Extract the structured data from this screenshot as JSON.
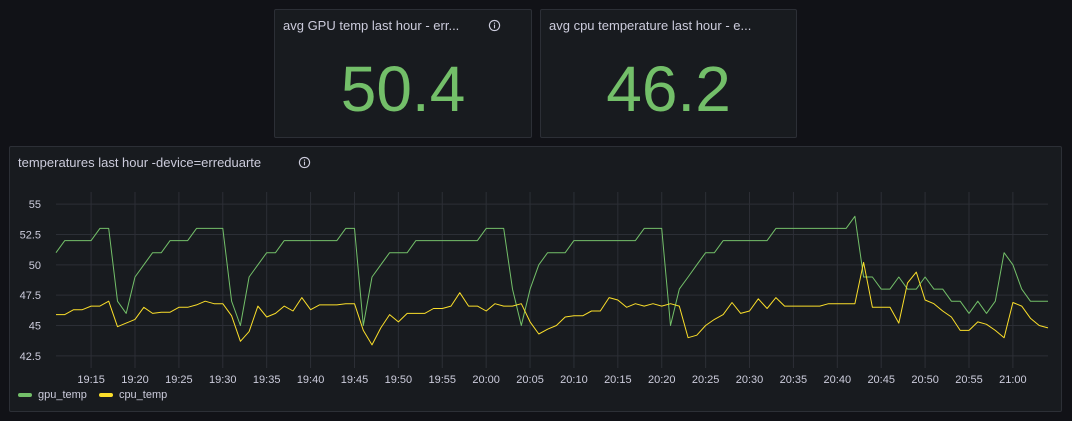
{
  "stats": [
    {
      "title": "avg GPU temp last hour - err...",
      "value": "50.4"
    },
    {
      "title": "avg cpu temperature last hour - e...",
      "value": "46.2"
    }
  ],
  "timeseries": {
    "title": "temperatures last hour -device=erreduarte"
  },
  "colors": {
    "gpu": "#73bf69",
    "cpu": "#fade2a",
    "stat_value": "#73bf69",
    "grid": "#2c2f36",
    "axis_text": "#ccccdc"
  },
  "chart_data": {
    "type": "line",
    "title": "temperatures last hour -device=erreduarte",
    "x_unit": "time",
    "x_range": [
      "19:11",
      "21:04"
    ],
    "x_ticks": [
      "19:15",
      "19:20",
      "19:25",
      "19:30",
      "19:35",
      "19:40",
      "19:45",
      "19:50",
      "19:55",
      "20:00",
      "20:05",
      "20:10",
      "20:15",
      "20:20",
      "20:25",
      "20:30",
      "20:35",
      "20:40",
      "20:45",
      "20:50",
      "20:55",
      "21:00"
    ],
    "y_ticks": [
      "42.5",
      "45",
      "47.5",
      "50",
      "52.5",
      "55"
    ],
    "ylim": [
      41.5,
      56
    ],
    "legend_placement": "bottom-left",
    "grid": true,
    "series": [
      {
        "name": "gpu_temp",
        "x": [
          "19:11",
          "19:12",
          "19:13",
          "19:14",
          "19:15",
          "19:16",
          "19:17",
          "19:18",
          "19:19",
          "19:20",
          "19:21",
          "19:22",
          "19:23",
          "19:24",
          "19:25",
          "19:26",
          "19:27",
          "19:28",
          "19:29",
          "19:30",
          "19:31",
          "19:32",
          "19:33",
          "19:34",
          "19:35",
          "19:36",
          "19:37",
          "19:38",
          "19:39",
          "19:40",
          "19:41",
          "19:42",
          "19:43",
          "19:44",
          "19:45",
          "19:46",
          "19:47",
          "19:48",
          "19:49",
          "19:50",
          "19:51",
          "19:52",
          "19:53",
          "19:54",
          "19:55",
          "19:56",
          "19:57",
          "19:58",
          "19:59",
          "20:00",
          "20:01",
          "20:02",
          "20:03",
          "20:04",
          "20:05",
          "20:06",
          "20:07",
          "20:08",
          "20:09",
          "20:10",
          "20:11",
          "20:12",
          "20:13",
          "20:14",
          "20:15",
          "20:16",
          "20:17",
          "20:18",
          "20:19",
          "20:20",
          "20:21",
          "20:22",
          "20:23",
          "20:24",
          "20:25",
          "20:26",
          "20:27",
          "20:28",
          "20:29",
          "20:30",
          "20:31",
          "20:32",
          "20:33",
          "20:34",
          "20:35",
          "20:36",
          "20:37",
          "20:38",
          "20:39",
          "20:40",
          "20:41",
          "20:42",
          "20:43",
          "20:44",
          "20:45",
          "20:46",
          "20:47",
          "20:48",
          "20:49",
          "20:50",
          "20:51",
          "20:52",
          "20:53",
          "20:54",
          "20:55",
          "20:56",
          "20:57",
          "20:58",
          "20:59",
          "21:00",
          "21:01",
          "21:02",
          "21:03",
          "21:04"
        ],
        "values": [
          51,
          52,
          52,
          52,
          52,
          53,
          53,
          47,
          46,
          49,
          50,
          51,
          51,
          52,
          52,
          52,
          53,
          53,
          53,
          53,
          47,
          45,
          49,
          50,
          51,
          51,
          52,
          52,
          52,
          52,
          52,
          52,
          52,
          53,
          53,
          45,
          49,
          50,
          51,
          51,
          51,
          52,
          52,
          52,
          52,
          52,
          52,
          52,
          52,
          53,
          53,
          53,
          48,
          45,
          48,
          50,
          51,
          51,
          51,
          52,
          52,
          52,
          52,
          52,
          52,
          52,
          52,
          53,
          53,
          53,
          45,
          48,
          49,
          50,
          51,
          51,
          52,
          52,
          52,
          52,
          52,
          52,
          53,
          53,
          53,
          53,
          53,
          53,
          53,
          53,
          53,
          54,
          49,
          49,
          48,
          48,
          49,
          48,
          48,
          49,
          48,
          48,
          47,
          47,
          46,
          47,
          46,
          47,
          51,
          50,
          48,
          47,
          47,
          47
        ]
      },
      {
        "name": "cpu_temp",
        "x": [
          "19:11",
          "19:12",
          "19:13",
          "19:14",
          "19:15",
          "19:16",
          "19:17",
          "19:18",
          "19:19",
          "19:20",
          "19:21",
          "19:22",
          "19:23",
          "19:24",
          "19:25",
          "19:26",
          "19:27",
          "19:28",
          "19:29",
          "19:30",
          "19:31",
          "19:32",
          "19:33",
          "19:34",
          "19:35",
          "19:36",
          "19:37",
          "19:38",
          "19:39",
          "19:40",
          "19:41",
          "19:42",
          "19:43",
          "19:44",
          "19:45",
          "19:46",
          "19:47",
          "19:48",
          "19:49",
          "19:50",
          "19:51",
          "19:52",
          "19:53",
          "19:54",
          "19:55",
          "19:56",
          "19:57",
          "19:58",
          "19:59",
          "20:00",
          "20:01",
          "20:02",
          "20:03",
          "20:04",
          "20:05",
          "20:06",
          "20:07",
          "20:08",
          "20:09",
          "20:10",
          "20:11",
          "20:12",
          "20:13",
          "20:14",
          "20:15",
          "20:16",
          "20:17",
          "20:18",
          "20:19",
          "20:20",
          "20:21",
          "20:22",
          "20:23",
          "20:24",
          "20:25",
          "20:26",
          "20:27",
          "20:28",
          "20:29",
          "20:30",
          "20:31",
          "20:32",
          "20:33",
          "20:34",
          "20:35",
          "20:36",
          "20:37",
          "20:38",
          "20:39",
          "20:40",
          "20:41",
          "20:42",
          "20:43",
          "20:44",
          "20:45",
          "20:46",
          "20:47",
          "20:48",
          "20:49",
          "20:50",
          "20:51",
          "20:52",
          "20:53",
          "20:54",
          "20:55",
          "20:56",
          "20:57",
          "20:58",
          "20:59",
          "21:00",
          "21:01",
          "21:02",
          "21:03",
          "21:04"
        ],
        "values": [
          45.9,
          45.9,
          46.3,
          46.3,
          46.6,
          46.6,
          47,
          44.9,
          45.2,
          45.5,
          46.5,
          46,
          46.1,
          46.1,
          46.5,
          46.5,
          46.7,
          47,
          46.8,
          46.8,
          45.8,
          43.7,
          44.5,
          46.6,
          45.7,
          46,
          46.6,
          46.2,
          47.3,
          46.3,
          46.7,
          46.7,
          46.7,
          46.8,
          46.8,
          44.6,
          43.4,
          44.8,
          45.9,
          45.3,
          46,
          46,
          46,
          46.4,
          46.4,
          46.6,
          47.7,
          46.6,
          46.6,
          46.2,
          46.8,
          46.6,
          46.6,
          46.8,
          45.3,
          44.3,
          44.7,
          45,
          45.7,
          45.8,
          45.8,
          46.2,
          46.2,
          47.3,
          47.1,
          46.5,
          46.8,
          46.6,
          46.8,
          46.6,
          46.8,
          46.6,
          44,
          44.2,
          45,
          45.5,
          45.9,
          46.9,
          46,
          46.2,
          47.2,
          46.4,
          47.3,
          46.6,
          46.6,
          46.6,
          46.6,
          46.6,
          46.8,
          46.8,
          46.8,
          46.8,
          50.2,
          46.5,
          46.5,
          46.5,
          45.2,
          48.5,
          49.4,
          47.1,
          46.8,
          46.2,
          45.7,
          44.6,
          44.6,
          45.3,
          45.1,
          44.6,
          44,
          46.9,
          46.6,
          45.6,
          45,
          44.8
        ]
      }
    ]
  }
}
